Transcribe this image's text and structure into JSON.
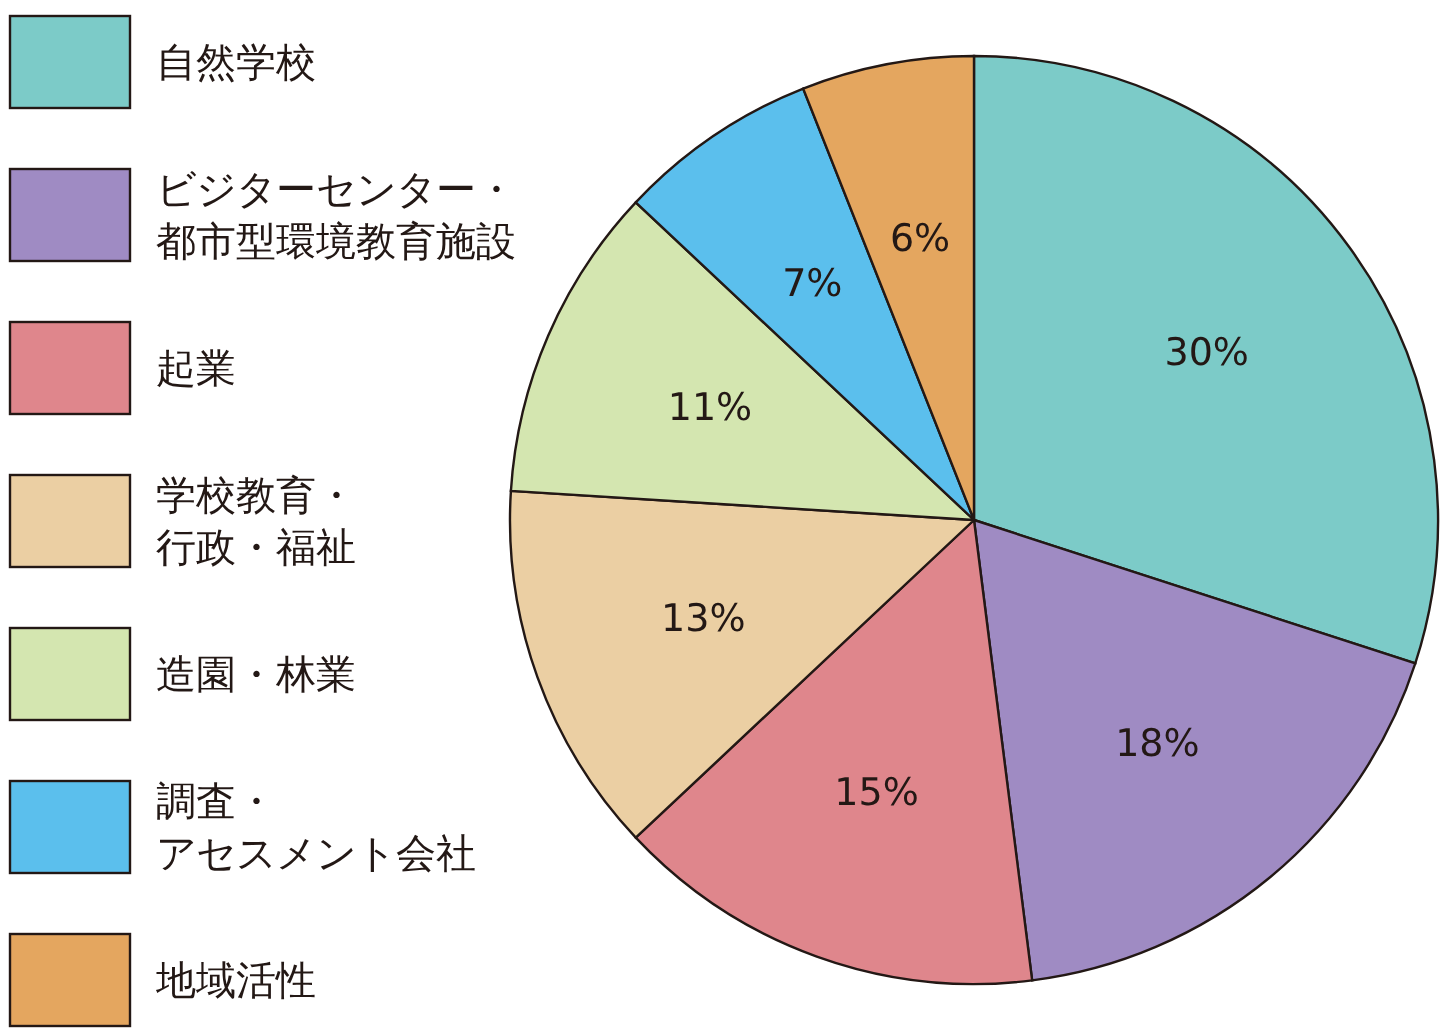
{
  "chart_data": {
    "type": "pie",
    "categories": [
      "自然学校",
      "ビジターセンター・都市型環境教育施設",
      "起業",
      "学校教育・行政・福祉",
      "造園・林業",
      "調査・アセスメント会社",
      "地域活性"
    ],
    "values": [
      30,
      18,
      15,
      13,
      11,
      7,
      6
    ],
    "value_labels": [
      "30%",
      "18%",
      "15%",
      "13%",
      "11%",
      "7%",
      "6%"
    ],
    "colors": [
      "#7ccbc8",
      "#9f8bc3",
      "#df868c",
      "#ebcfa3",
      "#d4e6b0",
      "#5bbfed",
      "#e4a65f"
    ],
    "legend": "left"
  }
}
